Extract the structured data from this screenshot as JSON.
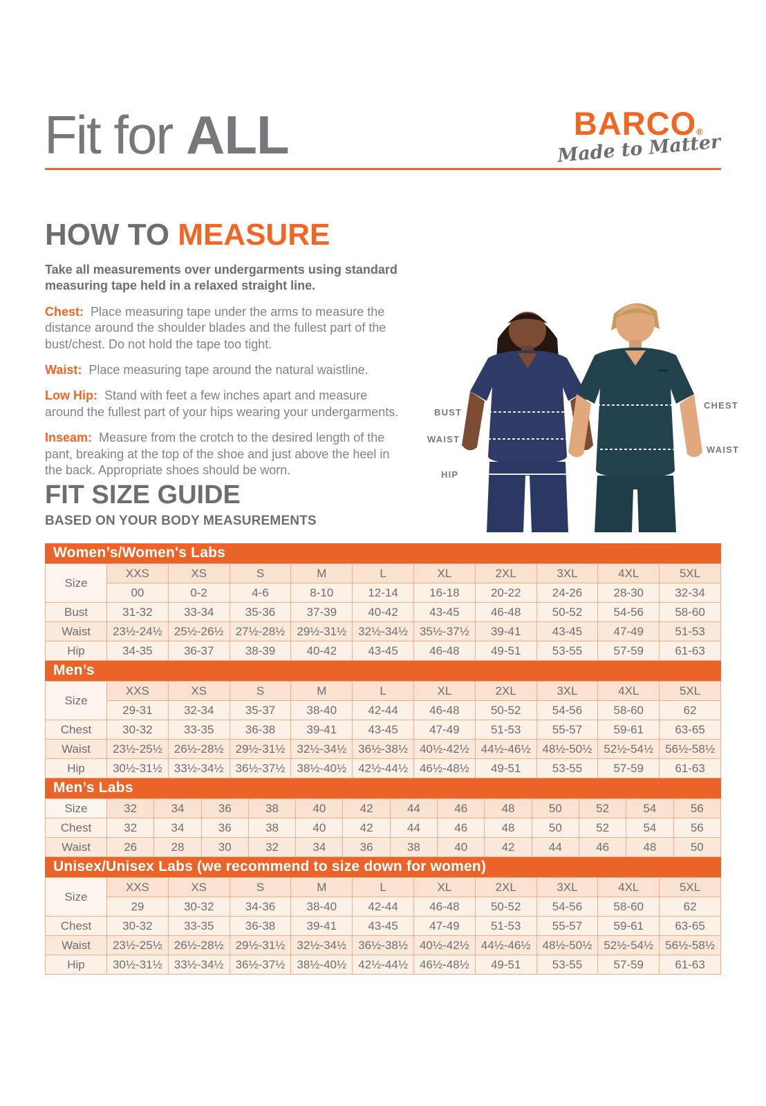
{
  "header": {
    "title_regular": "Fit for",
    "title_bold": "ALL",
    "logo_brand": "BARCO",
    "logo_registered": "®",
    "logo_tagline": "Made to Matter"
  },
  "how_to_measure": {
    "heading_gray": "HOW TO",
    "heading_orange": "MEASURE",
    "intro": "Take all measurements over undergarments using standard measuring tape held in a relaxed straight line.",
    "items": [
      {
        "label": "Chest:",
        "text": "Place measuring tape under the arms to measure the distance around the shoulder blades and the fullest part of the bust/chest. Do not hold the tape too tight."
      },
      {
        "label": "Waist:",
        "text": "Place measuring tape around the natural waistline."
      },
      {
        "label": "Low Hip:",
        "text": "Stand with feet a few inches apart and measure around the fullest part of your hips wearing your undergarments."
      },
      {
        "label": "Inseam:",
        "text": "Measure from the crotch to the desired length of the pant, breaking at the top of the shoe and just above the heel in the back. Appropriate shoes should be worn."
      }
    ]
  },
  "figure": {
    "bust_label": "BUST",
    "waist_left_label": "WAIST",
    "hip_label": "HIP",
    "chest_label": "CHEST",
    "waist_right_label": "WAIST"
  },
  "size_guide": {
    "heading": "FIT SIZE GUIDE",
    "subheading": "BASED ON YOUR BODY MEASUREMENTS",
    "tables": [
      {
        "id": "womens",
        "title": "Women’s/Women's Labs",
        "size_label": "Size",
        "columns": [
          "XXS",
          "XS",
          "S",
          "M",
          "L",
          "XL",
          "2XL",
          "3XL",
          "4XL",
          "5XL"
        ],
        "numeric_row": [
          "00",
          "0-2",
          "4-6",
          "8-10",
          "12-14",
          "16-18",
          "20-22",
          "24-26",
          "28-30",
          "32-34"
        ],
        "rows": [
          {
            "label": "Bust",
            "values": [
              "31-32",
              "33-34",
              "35-36",
              "37-39",
              "40-42",
              "43-45",
              "46-48",
              "50-52",
              "54-56",
              "58-60"
            ]
          },
          {
            "label": "Waist",
            "values": [
              "23½-24½",
              "25½-26½",
              "27½-28½",
              "29½-31½",
              "32½-34½",
              "35½-37½",
              "39-41",
              "43-45",
              "47-49",
              "51-53"
            ]
          },
          {
            "label": "Hip",
            "values": [
              "34-35",
              "36-37",
              "38-39",
              "40-42",
              "43-45",
              "46-48",
              "49-51",
              "53-55",
              "57-59",
              "61-63"
            ]
          }
        ]
      },
      {
        "id": "mens",
        "title": "Men’s",
        "size_label": "Size",
        "columns": [
          "XXS",
          "XS",
          "S",
          "M",
          "L",
          "XL",
          "2XL",
          "3XL",
          "4XL",
          "5XL"
        ],
        "numeric_row": [
          "29-31",
          "32-34",
          "35-37",
          "38-40",
          "42-44",
          "46-48",
          "50-52",
          "54-56",
          "58-60",
          "62"
        ],
        "rows": [
          {
            "label": "Chest",
            "values": [
              "30-32",
              "33-35",
              "36-38",
              "39-41",
              "43-45",
              "47-49",
              "51-53",
              "55-57",
              "59-61",
              "63-65"
            ]
          },
          {
            "label": "Waist",
            "values": [
              "23½-25½",
              "26½-28½",
              "29½-31½",
              "32½-34½",
              "36½-38½",
              "40½-42½",
              "44½-46½",
              "48½-50½",
              "52½-54½",
              "56½-58½"
            ]
          },
          {
            "label": "Hip",
            "values": [
              "30½-31½",
              "33½-34½",
              "36½-37½",
              "38½-40½",
              "42½-44½",
              "46½-48½",
              "49-51",
              "53-55",
              "57-59",
              "61-63"
            ]
          }
        ]
      },
      {
        "id": "mens-labs",
        "title": "Men’s Labs",
        "size_label": "Size",
        "columns": [
          "32",
          "34",
          "36",
          "38",
          "40",
          "42",
          "44",
          "46",
          "48",
          "50",
          "52",
          "54",
          "56"
        ],
        "numeric_row": null,
        "rows": [
          {
            "label": "Chest",
            "values": [
              "32",
              "34",
              "36",
              "38",
              "40",
              "42",
              "44",
              "46",
              "48",
              "50",
              "52",
              "54",
              "56"
            ]
          },
          {
            "label": "Waist",
            "values": [
              "26",
              "28",
              "30",
              "32",
              "34",
              "36",
              "38",
              "40",
              "42",
              "44",
              "46",
              "48",
              "50"
            ]
          }
        ]
      },
      {
        "id": "unisex",
        "title": "Unisex/Unisex Labs (we recommend to size down for women)",
        "size_label": "Size",
        "columns": [
          "XXS",
          "XS",
          "S",
          "M",
          "L",
          "XL",
          "2XL",
          "3XL",
          "4XL",
          "5XL"
        ],
        "numeric_row": [
          "29",
          "30-32",
          "34-36",
          "38-40",
          "42-44",
          "46-48",
          "50-52",
          "54-56",
          "58-60",
          "62"
        ],
        "rows": [
          {
            "label": "Chest",
            "values": [
              "30-32",
              "33-35",
              "36-38",
              "39-41",
              "43-45",
              "47-49",
              "51-53",
              "55-57",
              "59-61",
              "63-65"
            ]
          },
          {
            "label": "Waist",
            "values": [
              "23½-25½",
              "26½-28½",
              "29½-31½",
              "32½-34½",
              "36½-38½",
              "40½-42½",
              "44½-46½",
              "48½-50½",
              "52½-54½",
              "56½-58½"
            ]
          },
          {
            "label": "Hip",
            "values": [
              "30½-31½",
              "33½-34½",
              "36½-37½",
              "38½-40½",
              "42½-44½",
              "46½-48½",
              "49-51",
              "53-55",
              "57-59",
              "61-63"
            ]
          }
        ]
      }
    ]
  },
  "colors": {
    "accent_orange": "#F26522",
    "band_orange": "#EA6429",
    "heading_gray": "#6D6E71",
    "body_gray": "#808285",
    "cell_border": "#F4AC87",
    "size_header_bg": "#FAE2D0",
    "row_light_bg": "#FCF1E7",
    "row_shade_bg": "#FAE9DB",
    "label_cell_bg": "#FDF5EE",
    "woman_scrub_navy": "#2F3B66",
    "man_scrub_teal": "#22424E"
  }
}
